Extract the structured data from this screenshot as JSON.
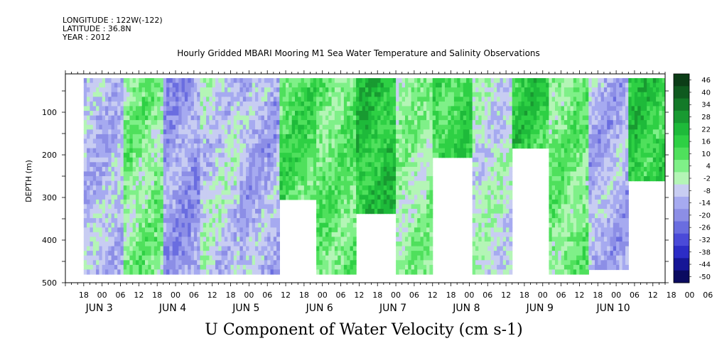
{
  "header": {
    "longitude": "LONGITUDE : 122W(-122)",
    "latitude": "LATITUDE : 36.8N",
    "year": "YEAR : 2012"
  },
  "chart_data": {
    "type": "heatmap",
    "title": "Hourly Gridded MBARI Mooring M1 Sea Water Temperature and Salinity Observations",
    "variable_label": "U Component of Water Velocity (cm s-1)",
    "ylabel": "DEPTH (m)",
    "ylim": [
      500,
      10
    ],
    "y_ticks": [
      100,
      200,
      300,
      400,
      500
    ],
    "x_range_hours": [
      "2012-06-02 12:00",
      "2012-06-10 16:00"
    ],
    "x_hour_ticks": [
      "18",
      "00",
      "06",
      "12",
      "18",
      "00",
      "06",
      "12",
      "18",
      "00",
      "06",
      "12",
      "18",
      "00",
      "06",
      "12",
      "18",
      "00",
      "06",
      "12",
      "18",
      "00",
      "06",
      "12",
      "18",
      "00",
      "06",
      "12",
      "18",
      "00",
      "06",
      "12",
      "18",
      "00",
      "06",
      "12"
    ],
    "x_day_labels": [
      "JUN  3",
      "JUN  4",
      "JUN  5",
      "JUN  6",
      "JUN  7",
      "JUN  8",
      "JUN  9",
      "JUN 10"
    ],
    "colorbar_levels": [
      "46",
      "40",
      "34",
      "28",
      "22",
      "16",
      "10",
      "4",
      "-2",
      "-8",
      "-14",
      "-20",
      "-26",
      "-32",
      "-38",
      "-44",
      "-50"
    ],
    "colorbar_colors": [
      "#0c3d17",
      "#0f5a1f",
      "#137a28",
      "#189a31",
      "#1eba3a",
      "#2ed044",
      "#4fe05c",
      "#7ff088",
      "#b4f5b6",
      "#c8cdf2",
      "#a6aaf0",
      "#8c8ee6",
      "#6a6de0",
      "#4a4ad8",
      "#2c2cc6",
      "#161696",
      "#0b0b60"
    ],
    "column_profiles": [
      {
        "day": "Jun 2 18",
        "u_mean": -8,
        "valid_to_depth": 480
      },
      {
        "day": "Jun 3 06",
        "u_mean": 6,
        "valid_to_depth": 480
      },
      {
        "day": "Jun 3 18",
        "u_mean": -14,
        "valid_to_depth": 480
      },
      {
        "day": "Jun 4 06",
        "u_mean": -4,
        "valid_to_depth": 480
      },
      {
        "day": "Jun 4 18",
        "u_mean": -10,
        "valid_to_depth": 480
      },
      {
        "day": "Jun 5 06",
        "u_mean": 14,
        "valid_to_depth": 300
      },
      {
        "day": "Jun 5 18",
        "u_mean": 10,
        "valid_to_depth": 480
      },
      {
        "day": "Jun 6 06",
        "u_mean": 22,
        "valid_to_depth": 330
      },
      {
        "day": "Jun 6 18",
        "u_mean": 4,
        "valid_to_depth": 480
      },
      {
        "day": "Jun 7 06",
        "u_mean": 16,
        "valid_to_depth": 200
      },
      {
        "day": "Jun 7 18",
        "u_mean": -2,
        "valid_to_depth": 480
      },
      {
        "day": "Jun 8 06",
        "u_mean": 18,
        "valid_to_depth": 180
      },
      {
        "day": "Jun 8 18",
        "u_mean": 8,
        "valid_to_depth": 480
      },
      {
        "day": "Jun 9 06",
        "u_mean": -10,
        "valid_to_depth": 460
      },
      {
        "day": "Jun 10 06",
        "u_mean": 20,
        "valid_to_depth": 250
      }
    ],
    "grid": false,
    "legend": "right colorbar"
  }
}
